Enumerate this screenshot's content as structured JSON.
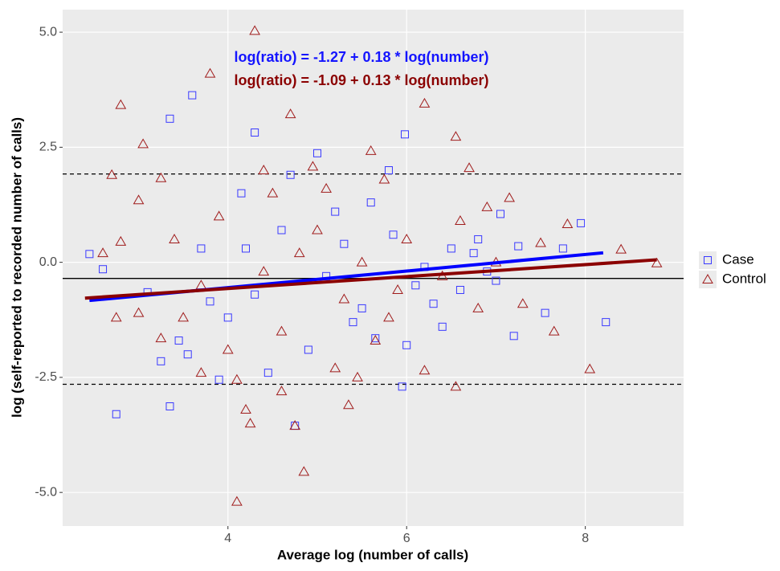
{
  "chart_data": {
    "type": "scatter",
    "x_label": "Average log (number of calls)",
    "y_label": "log (self-reported to recorded number of calls)",
    "xlim": [
      2.15,
      9.1
    ],
    "ylim": [
      -5.73,
      5.49
    ],
    "xticks": [
      4,
      6,
      8
    ],
    "yticks": [
      {
        "value": 5,
        "label": "5.0"
      },
      {
        "value": 2.5,
        "label": "2.5"
      },
      {
        "value": 0,
        "label": "0.0"
      },
      {
        "value": -2.5,
        "label": "-2.5"
      },
      {
        "value": -5,
        "label": "-5.0"
      }
    ],
    "grid": true,
    "legend": "right",
    "reference_lines": [
      {
        "y": -0.35,
        "style": "solid"
      },
      {
        "y": 1.92,
        "style": "dashed"
      },
      {
        "y": -2.65,
        "style": "dashed"
      }
    ],
    "annotations": [
      {
        "text": "log(ratio) = -1.27 + 0.18 * log(number)",
        "color": "#1414ff"
      },
      {
        "text": "log(ratio) = -1.09 + 0.13 * log(number)",
        "color": "#8b0000"
      }
    ],
    "series": [
      {
        "name": "Case",
        "color": "#3a3aff",
        "marker": "square",
        "fit": {
          "intercept": -1.27,
          "slope": 0.18,
          "x_range": [
            2.45,
            8.2
          ],
          "color": "#0000ff"
        },
        "x": [
          2.45,
          2.75,
          3.35,
          3.6,
          3.35,
          4.3,
          5.0,
          5.98,
          5.8,
          4.15,
          7.95,
          8.23,
          7.2,
          5.95,
          4.75,
          3.9,
          3.25,
          3.45,
          3.8,
          4.6,
          5.2,
          5.5,
          6.1,
          6.5,
          6.9,
          7.05,
          7.55,
          6.4,
          5.65,
          4.9,
          4.45,
          4.2,
          3.1,
          2.6,
          5.3,
          5.85,
          6.3,
          6.75,
          4.0,
          5.1,
          3.7,
          7.25,
          7.75,
          4.7,
          5.6,
          6.2,
          6.6,
          3.55,
          4.3,
          5.4,
          6.0,
          7.0,
          6.8
        ],
        "values": [
          0.18,
          -3.3,
          3.12,
          3.63,
          -3.13,
          2.82,
          2.37,
          2.78,
          2.0,
          1.5,
          0.85,
          -1.3,
          -1.6,
          -2.7,
          -3.55,
          -2.55,
          -2.15,
          -1.7,
          -0.85,
          0.7,
          1.1,
          -1.0,
          -0.5,
          0.3,
          -0.2,
          1.05,
          -1.1,
          -1.4,
          -1.65,
          -1.9,
          -2.4,
          0.3,
          -0.65,
          -0.15,
          0.4,
          0.6,
          -0.9,
          0.2,
          -1.2,
          -0.3,
          0.3,
          0.35,
          0.3,
          1.9,
          1.3,
          -0.1,
          -0.6,
          -2.0,
          -0.7,
          -1.3,
          -1.8,
          -0.4,
          0.5
        ]
      },
      {
        "name": "Control",
        "color": "#a01c1c",
        "marker": "triangle",
        "fit": {
          "intercept": -1.09,
          "slope": 0.13,
          "x_range": [
            2.4,
            8.8
          ],
          "color": "#8b0000"
        },
        "x": [
          4.3,
          3.8,
          2.8,
          3.05,
          4.7,
          6.2,
          6.55,
          5.6,
          4.95,
          6.7,
          2.7,
          3.25,
          4.1,
          4.85,
          4.75,
          4.2,
          4.25,
          5.35,
          4.1,
          3.7,
          7.65,
          8.05,
          8.8,
          8.4,
          7.5,
          7.8,
          7.15,
          6.9,
          2.6,
          2.8,
          3.0,
          3.4,
          3.9,
          4.5,
          5.0,
          5.5,
          6.0,
          6.4,
          6.8,
          7.3,
          5.8,
          5.2,
          4.6,
          4.0,
          3.5,
          3.0,
          2.75,
          5.65,
          6.2,
          6.55,
          5.9,
          5.3,
          4.8,
          4.4,
          3.7,
          6.6,
          7.0,
          5.1,
          5.75,
          4.4,
          3.25,
          4.6,
          5.45
        ],
        "values": [
          5.03,
          4.1,
          3.42,
          2.57,
          3.22,
          3.45,
          2.73,
          2.42,
          2.08,
          2.05,
          1.9,
          1.83,
          -5.2,
          -4.55,
          -3.55,
          -3.2,
          -3.5,
          -3.1,
          -2.55,
          -2.4,
          -1.5,
          -2.32,
          -0.02,
          0.28,
          0.42,
          0.83,
          1.4,
          1.2,
          0.2,
          0.45,
          1.35,
          0.5,
          1.0,
          1.5,
          0.7,
          0.0,
          0.5,
          -0.3,
          -1.0,
          -0.9,
          -1.2,
          -2.3,
          -1.5,
          -1.9,
          -1.2,
          -1.1,
          -1.2,
          -1.7,
          -2.35,
          -2.7,
          -0.6,
          -0.8,
          0.2,
          -0.2,
          -0.5,
          0.9,
          0.0,
          1.6,
          1.8,
          2.0,
          -1.65,
          -2.8,
          -2.5
        ]
      }
    ]
  }
}
